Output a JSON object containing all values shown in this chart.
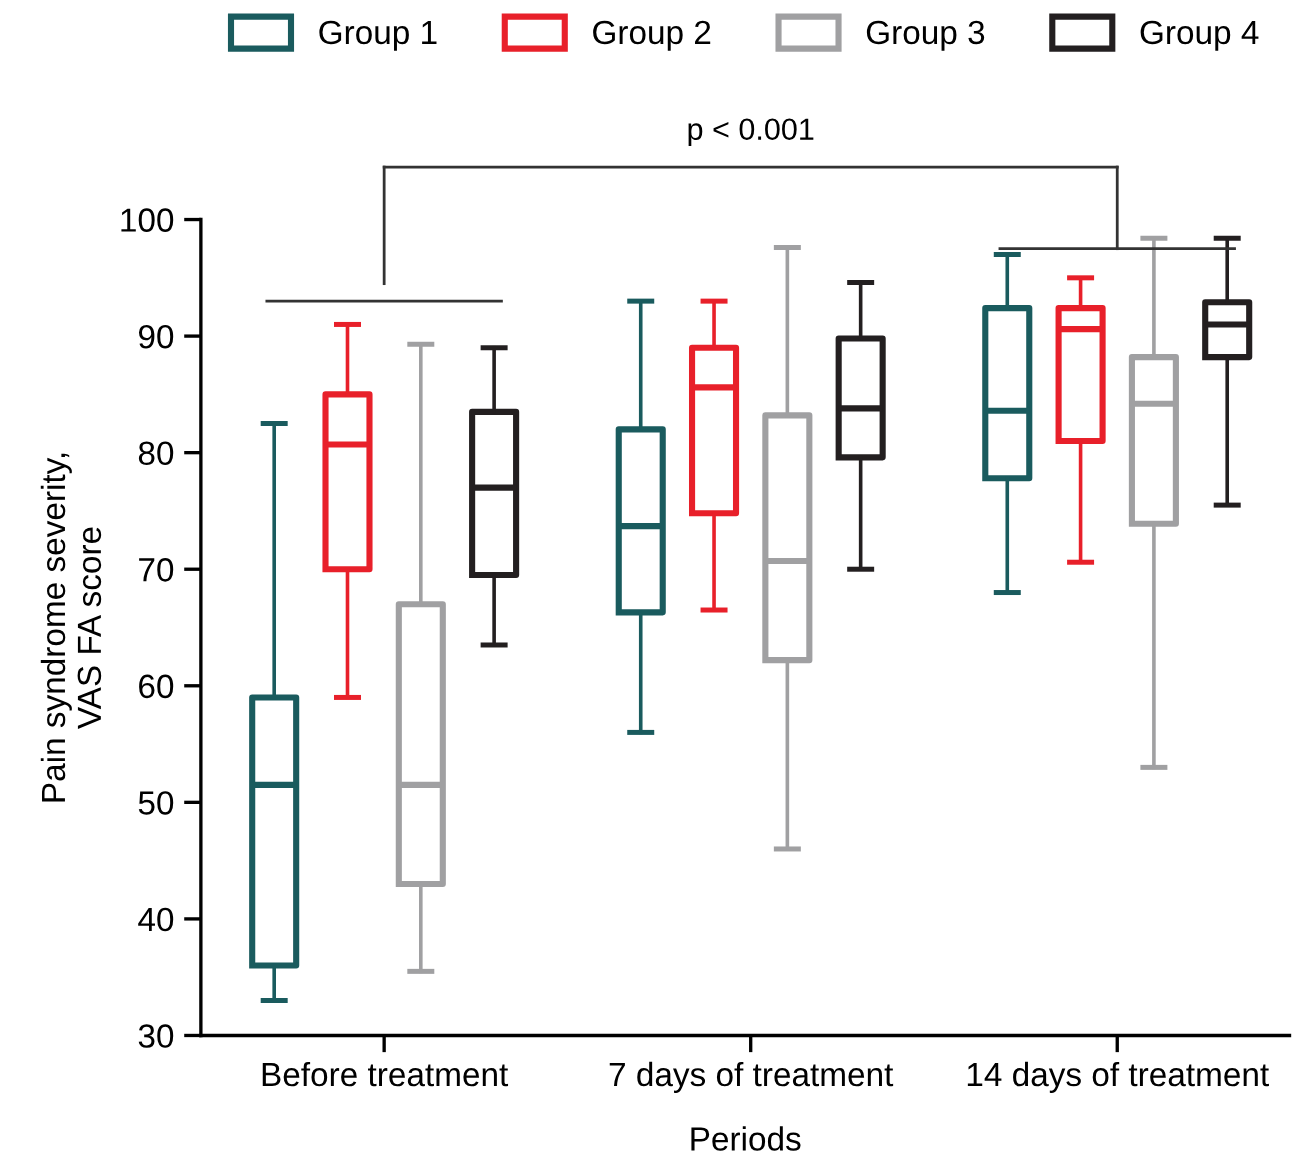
{
  "chart_data": {
    "type": "box",
    "categories": [
      "Before treatment",
      "7 days of treatment",
      "14 days of treatment"
    ],
    "xlabel": "Periods",
    "ylabel": "Pain syndrome severity,\nVAS FA score",
    "ylim": [
      30,
      100
    ],
    "yticks": [
      30,
      40,
      50,
      60,
      70,
      80,
      90,
      100
    ],
    "grid": false,
    "legend": "top",
    "annotations": [
      "p < 0.001"
    ],
    "series": [
      {
        "name": "Group 1",
        "color": "#1a5b5e",
        "boxes": [
          {
            "low": 33,
            "q1": 36,
            "median": 51.5,
            "q3": 59,
            "high": 82.5
          },
          {
            "low": 56,
            "q1": 66.3,
            "median": 73.7,
            "q3": 82,
            "high": 93
          },
          {
            "low": 68,
            "q1": 77.8,
            "median": 83.6,
            "q3": 92.4,
            "high": 97
          }
        ]
      },
      {
        "name": "Group 2",
        "color": "#e8202a",
        "boxes": [
          {
            "low": 59,
            "q1": 70,
            "median": 80.7,
            "q3": 85,
            "high": 91
          },
          {
            "low": 66.5,
            "q1": 74.8,
            "median": 85.6,
            "q3": 89,
            "high": 93
          },
          {
            "low": 70.6,
            "q1": 81,
            "median": 90.6,
            "q3": 92.4,
            "high": 95
          }
        ]
      },
      {
        "name": "Group 3",
        "color": "#a0a0a2",
        "boxes": [
          {
            "low": 35.5,
            "q1": 43,
            "median": 51.5,
            "q3": 67,
            "high": 89.3
          },
          {
            "low": 46,
            "q1": 62.2,
            "median": 70.7,
            "q3": 83.2,
            "high": 97.6
          },
          {
            "low": 53,
            "q1": 73.9,
            "median": 84.2,
            "q3": 88.2,
            "high": 98.4
          }
        ]
      },
      {
        "name": "Group 4",
        "color": "#231f20",
        "boxes": [
          {
            "low": 63.5,
            "q1": 69.5,
            "median": 77,
            "q3": 83.5,
            "high": 89
          },
          {
            "low": 70,
            "q1": 79.6,
            "median": 83.8,
            "q3": 89.8,
            "high": 94.6
          },
          {
            "low": 75.5,
            "q1": 88.2,
            "median": 91,
            "q3": 92.9,
            "high": 98.4
          }
        ]
      }
    ]
  }
}
